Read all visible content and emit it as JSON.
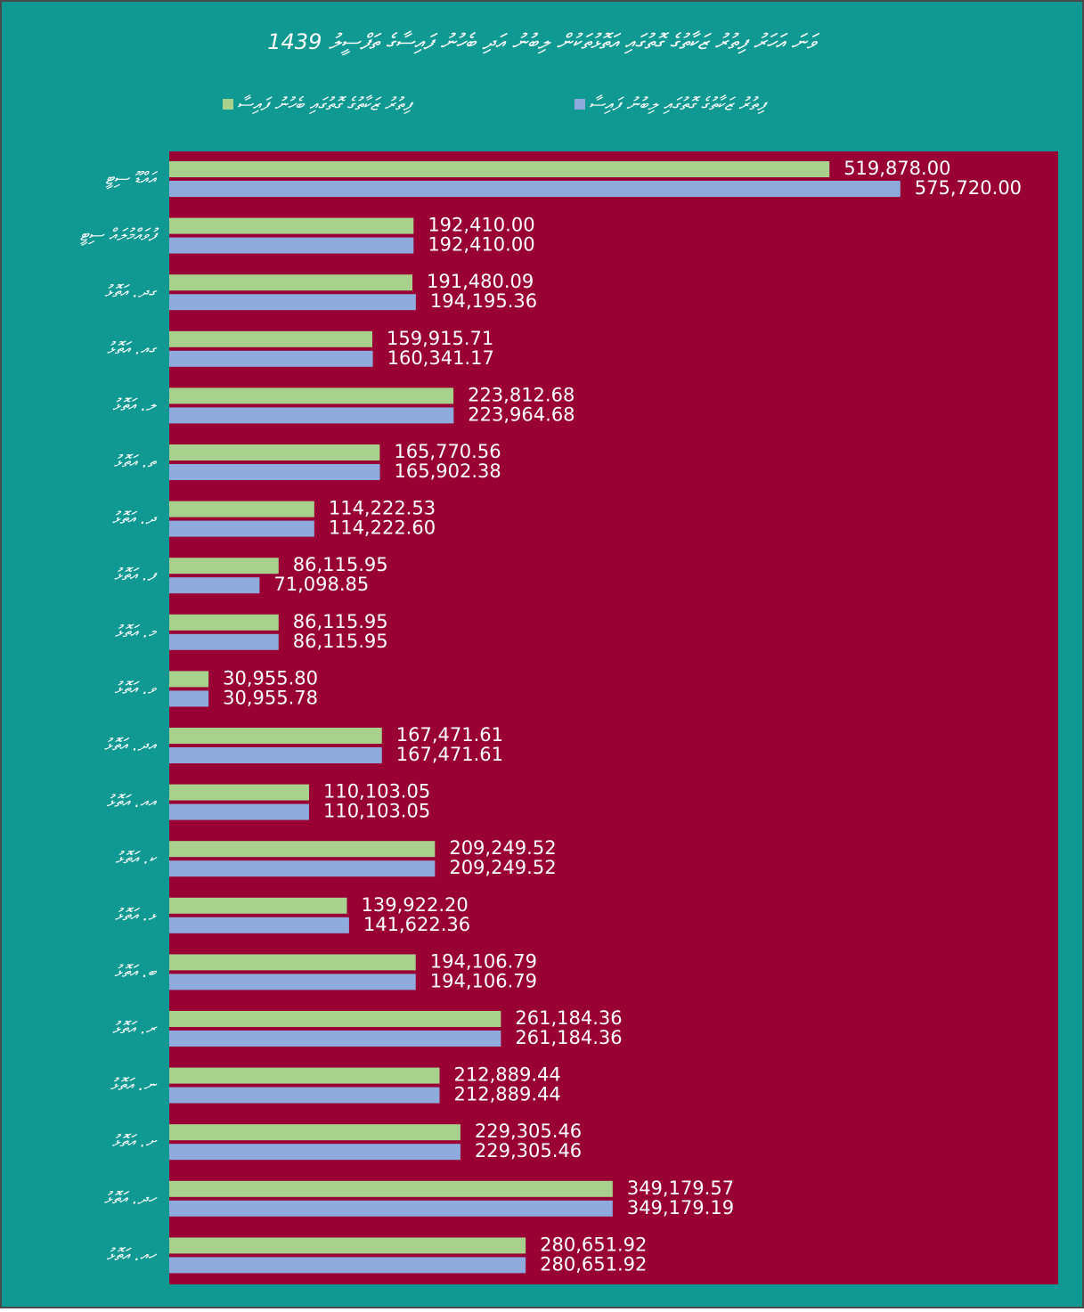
{
  "chart_data": {
    "type": "hbar",
    "title": "1439 ވަނަ އަހަރު ފިތުރު ޒަކާތުގެ ގޮތުގައި އަތޮޅުތަކުން ލިބުނު އަދި ބެހުނު ފައިސާގެ ތަފްސީލު",
    "categories": [
      "އައްޑޫ ސިޓީ",
      "ފުވައްމުލައް ސިޓީ",
      "ގދ. އަތޮޅު",
      "ގއ. އަތޮޅު",
      "ލ. އަތޮޅު",
      "ތ. އަތޮޅު",
      "ދ. އަތޮޅު",
      "ފ. އަތޮޅު",
      "މ. އަތޮޅު",
      "ވ. އަތޮޅު",
      "އދ. އަތޮޅު",
      "އއ. އަތޮޅު",
      "ކ. އަތޮޅު",
      "ޅ. އަތޮޅު",
      "ބ. އަތޮޅު",
      "ރ. އަތޮޅު",
      "ނ. އަތޮޅު",
      "ށ. އަތޮޅު",
      "ހދ. އަތޮޅު",
      "ހއ. އަތޮޅު"
    ],
    "series": [
      {
        "name": "ފިތުރު ޒަކާތުގެ ގޮތުގައި ބެހުނު ފައިސާ",
        "color": "#a9d18e",
        "values": [
          519878,
          192410,
          191480.09,
          159915.71,
          223812.68,
          165770.56,
          114222.53,
          86115.95,
          86115.95,
          30955.8,
          167471.61,
          110103.05,
          209249.52,
          139922.2,
          194106.79,
          261184.36,
          212889.44,
          229305.46,
          349179.57,
          280651.92
        ],
        "value_labels": [
          "519,878.00",
          "192,410.00",
          "191,480.09",
          "159,915.71",
          "223,812.68",
          "165,770.56",
          "114,222.53",
          "86,115.95",
          "86,115.95",
          "30,955.80",
          "167,471.61",
          "110,103.05",
          "209,249.52",
          "139,922.20",
          "194,106.79",
          "261,184.36",
          "212,889.44",
          "229,305.46",
          "349,179.57",
          "280,651.92"
        ]
      },
      {
        "name": "ފިތުރު ޒަކާތުގެ ގޮތުގައި ލިބުނު ފައިސާ",
        "color": "#8faadc",
        "values": [
          575720,
          192410,
          194195.36,
          160341.17,
          223964.68,
          165902.38,
          114222.6,
          71098.85,
          86115.95,
          30955.78,
          167471.61,
          110103.05,
          209249.52,
          141622.36,
          194106.79,
          261184.36,
          212889.44,
          229305.46,
          349179.19,
          280651.92
        ],
        "value_labels": [
          "575,720.00",
          "192,410.00",
          "194,195.36",
          "160,341.17",
          "223,964.68",
          "165,902.38",
          "114,222.60",
          "71,098.85",
          "86,115.95",
          "30,955.78",
          "167,471.61",
          "110,103.05",
          "209,249.52",
          "141,622.36",
          "194,106.79",
          "261,184.36",
          "212,889.44",
          "229,305.46",
          "349,179.19",
          "280,651.92"
        ]
      }
    ],
    "xlim": [
      0,
      700000
    ]
  }
}
